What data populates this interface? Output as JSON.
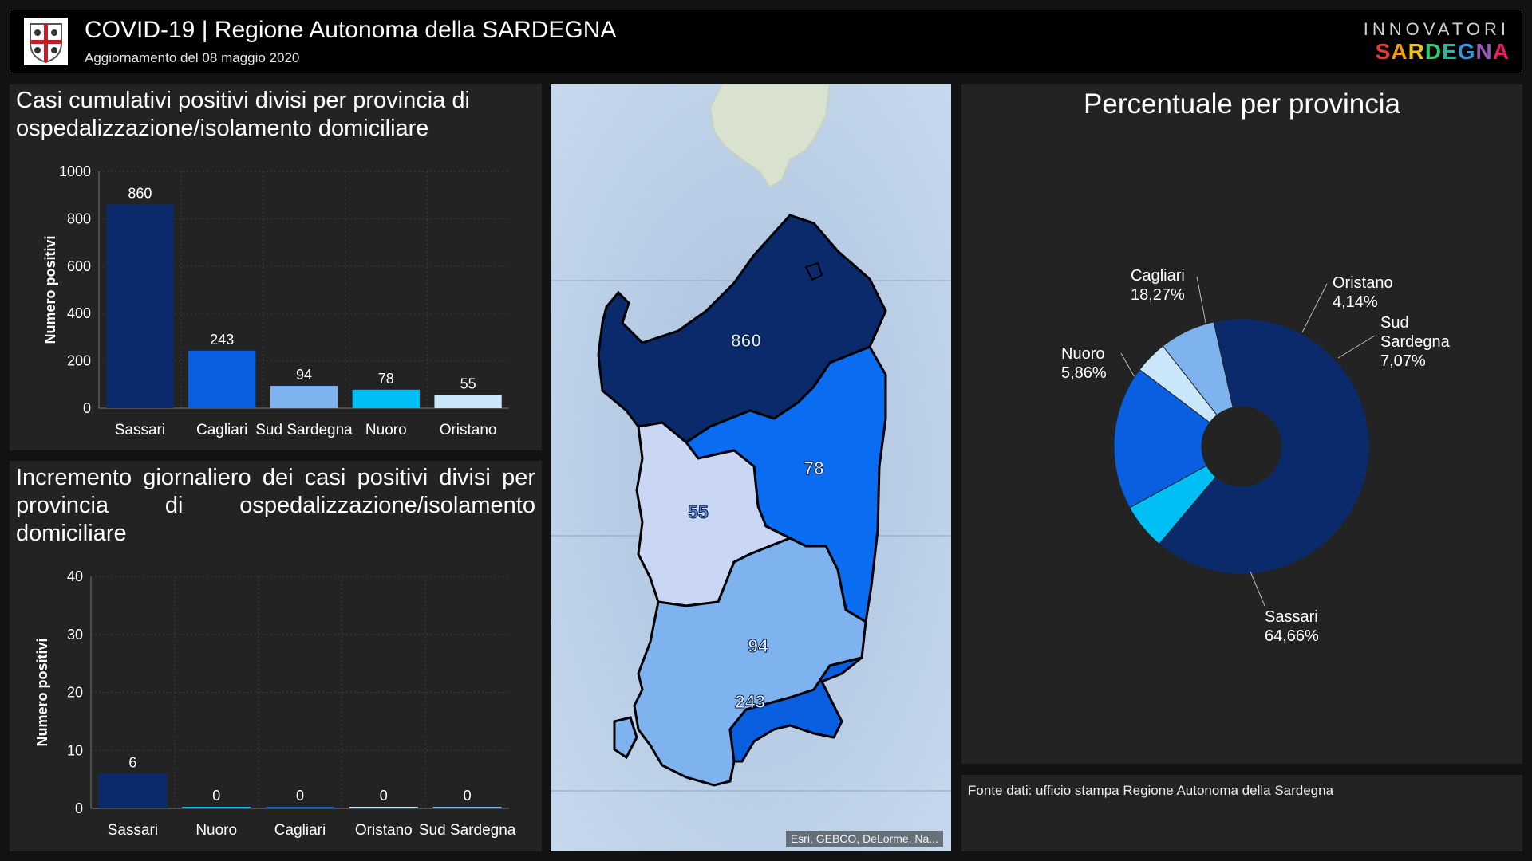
{
  "header": {
    "title": "COVID-19 | Regione Autonoma della SARDEGNA",
    "subtitle": "Aggiornamento del 08 maggio 2020",
    "brand_top": "INNOVATORI",
    "brand_bottom": "SARDEGNA"
  },
  "panel_cumulative": {
    "title": "Casi cumulativi positivi divisi per provincia di ospedalizzazione/isolamento domiciliare"
  },
  "panel_daily": {
    "title": "Incremento giornaliero dei casi positivi divisi per provincia di ospedalizzazione/isolamento domiciliare"
  },
  "map": {
    "attribution": "Esri, GEBCO, DeLorme, Na...",
    "labels": {
      "sassari": "860",
      "nuoro": "78",
      "oristano": "55",
      "sud_sardegna": "94",
      "cagliari": "243"
    },
    "colors": {
      "sassari": "#0a2a6b",
      "nuoro": "#0a6cf0",
      "oristano": "#c9d7f5",
      "sud_sardegna": "#7fb3f0",
      "cagliari": "#0a5fe0"
    }
  },
  "pie_panel": {
    "title": "Percentuale per provincia"
  },
  "source": {
    "text": "Fonte dati: ufficio stampa Regione Autonoma della Sardegna"
  },
  "chart_data": [
    {
      "type": "bar",
      "title": "Casi cumulativi positivi divisi per provincia di ospedalizzazione/isolamento domiciliare",
      "categories": [
        "Sassari",
        "Cagliari",
        "Sud Sardegna",
        "Nuoro",
        "Oristano"
      ],
      "values": [
        860,
        243,
        94,
        78,
        55
      ],
      "colors": [
        "#0a2a6b",
        "#0a5fe0",
        "#7fb3f0",
        "#00bff5",
        "#c9e6fb"
      ],
      "ylabel": "Numero positivi",
      "ylim": [
        0,
        1000
      ],
      "yticks": [
        0,
        200,
        400,
        600,
        800,
        1000
      ],
      "grid": true
    },
    {
      "type": "bar",
      "title": "Incremento giornaliero dei casi positivi divisi per provincia di ospedalizzazione/isolamento domiciliare",
      "categories": [
        "Sassari",
        "Nuoro",
        "Cagliari",
        "Oristano",
        "Sud Sardegna"
      ],
      "values": [
        6,
        0,
        0,
        0,
        0
      ],
      "colors": [
        "#0a2a6b",
        "#00bff5",
        "#0a5fe0",
        "#c9e6fb",
        "#7fb3f0"
      ],
      "ylabel": "Numero positivi",
      "ylim": [
        0,
        40
      ],
      "yticks": [
        0,
        10,
        20,
        30,
        40
      ],
      "grid": true
    },
    {
      "type": "pie",
      "title": "Percentuale per provincia",
      "slices": [
        {
          "label": "Sassari",
          "value": 64.66,
          "text": "64,66%",
          "color": "#0a2a6b"
        },
        {
          "label": "Nuoro",
          "value": 5.86,
          "text": "5,86%",
          "color": "#00bff5"
        },
        {
          "label": "Cagliari",
          "value": 18.27,
          "text": "18,27%",
          "color": "#0a5fe0"
        },
        {
          "label": "Oristano",
          "value": 4.14,
          "text": "4,14%",
          "color": "#c9e6fb"
        },
        {
          "label": "Sud Sardegna",
          "value": 7.07,
          "text": "7,07%",
          "color": "#7fb3f0"
        }
      ],
      "donut": true
    }
  ]
}
